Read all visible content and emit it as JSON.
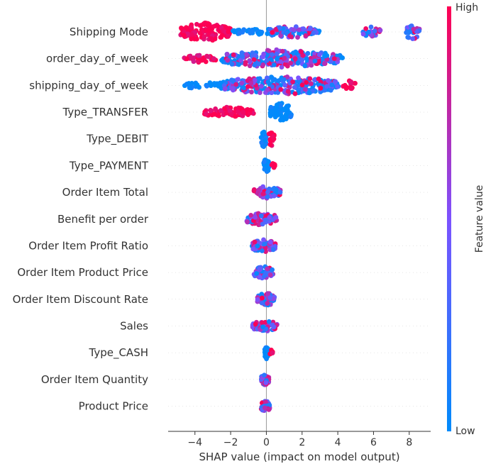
{
  "chart_data": {
    "type": "scatter",
    "subtype": "shap-beeswarm",
    "title": "",
    "xlabel": "SHAP value (impact on model output)",
    "ylabel": "",
    "xlim": [
      -5.5,
      9.2
    ],
    "x_ticks": [
      -4,
      -2,
      0,
      2,
      4,
      6,
      8
    ],
    "x_tick_labels": [
      "−4",
      "−2",
      "0",
      "2",
      "4",
      "6",
      "8"
    ],
    "colorbar": {
      "label": "Feature value",
      "high_label": "High",
      "low_label": "Low",
      "high_color": "#ff0052",
      "low_color": "#008bfb"
    },
    "features": [
      {
        "name": "Shipping Mode",
        "clusters": [
          {
            "min": -4.8,
            "max": -2.0,
            "value": 1.0,
            "count": 140,
            "spread": 1.0
          },
          {
            "min": -2.0,
            "max": 3.0,
            "value": 0.0,
            "count": 70,
            "spread": 0.35
          },
          {
            "min": 0.2,
            "max": 2.8,
            "value": 0.6,
            "count": 60,
            "spread": 0.65
          },
          {
            "min": 5.4,
            "max": 6.4,
            "value": 0.4,
            "count": 22,
            "spread": 0.55
          },
          {
            "min": 7.8,
            "max": 8.6,
            "value": 0.35,
            "count": 28,
            "spread": 0.85
          }
        ]
      },
      {
        "name": "order_day_of_week",
        "clusters": [
          {
            "min": -4.7,
            "max": -2.8,
            "value": 0.95,
            "count": 30,
            "spread": 0.4
          },
          {
            "min": -2.6,
            "max": 4.3,
            "value": 0.0,
            "count": 110,
            "spread": 0.85
          },
          {
            "min": -2.4,
            "max": 4.0,
            "value": 0.75,
            "count": 160,
            "spread": 1.0
          }
        ]
      },
      {
        "name": "shipping_day_of_week",
        "clusters": [
          {
            "min": -4.6,
            "max": -2.5,
            "value": 0.0,
            "count": 30,
            "spread": 0.4
          },
          {
            "min": -2.6,
            "max": 4.2,
            "value": 0.0,
            "count": 110,
            "spread": 0.85
          },
          {
            "min": -2.4,
            "max": 4.0,
            "value": 0.75,
            "count": 160,
            "spread": 1.0
          },
          {
            "min": 4.3,
            "max": 5.0,
            "value": 1.0,
            "count": 14,
            "spread": 0.5
          }
        ]
      },
      {
        "name": "Type_TRANSFER",
        "clusters": [
          {
            "min": -3.5,
            "max": -0.7,
            "value": 1.0,
            "count": 80,
            "spread": 0.55
          },
          {
            "min": 0.2,
            "max": 1.4,
            "value": 0.0,
            "count": 70,
            "spread": 1.0
          }
        ]
      },
      {
        "name": "Type_DEBIT",
        "clusters": [
          {
            "min": -0.3,
            "max": 0.0,
            "value": 0.0,
            "count": 40,
            "spread": 0.9
          },
          {
            "min": 0.1,
            "max": 0.45,
            "value": 1.0,
            "count": 22,
            "spread": 0.8
          }
        ]
      },
      {
        "name": "Type_PAYMENT",
        "clusters": [
          {
            "min": -0.15,
            "max": 0.15,
            "value": 0.0,
            "count": 40,
            "spread": 0.8
          },
          {
            "min": 0.15,
            "max": 0.5,
            "value": 1.0,
            "count": 8,
            "spread": 0.3
          }
        ]
      },
      {
        "name": "Order Item Total",
        "clusters": [
          {
            "min": -0.7,
            "max": 0.8,
            "value": 0.5,
            "count": 60,
            "spread": 0.7
          }
        ]
      },
      {
        "name": "Benefit per order",
        "clusters": [
          {
            "min": -1.1,
            "max": 0.6,
            "value": 0.5,
            "count": 60,
            "spread": 0.7
          }
        ]
      },
      {
        "name": "Order Item Profit Ratio",
        "clusters": [
          {
            "min": -0.8,
            "max": 0.5,
            "value": 0.5,
            "count": 60,
            "spread": 0.7
          }
        ]
      },
      {
        "name": "Order Item Product Price",
        "clusters": [
          {
            "min": -0.7,
            "max": 0.4,
            "value": 0.5,
            "count": 55,
            "spread": 0.7
          }
        ]
      },
      {
        "name": "Order Item Discount Rate",
        "clusters": [
          {
            "min": -0.5,
            "max": 0.5,
            "value": 0.5,
            "count": 55,
            "spread": 0.7
          }
        ]
      },
      {
        "name": "Sales",
        "clusters": [
          {
            "min": -0.8,
            "max": 0.6,
            "value": 0.5,
            "count": 55,
            "spread": 0.6
          }
        ]
      },
      {
        "name": "Type_CASH",
        "clusters": [
          {
            "min": -0.1,
            "max": 0.1,
            "value": 0.0,
            "count": 40,
            "spread": 0.7
          },
          {
            "min": 0.15,
            "max": 0.4,
            "value": 1.0,
            "count": 6,
            "spread": 0.3
          }
        ]
      },
      {
        "name": "Order Item Quantity",
        "clusters": [
          {
            "min": -0.3,
            "max": 0.15,
            "value": 0.5,
            "count": 40,
            "spread": 0.6
          }
        ]
      },
      {
        "name": "Product Price",
        "clusters": [
          {
            "min": -0.3,
            "max": 0.2,
            "value": 0.5,
            "count": 40,
            "spread": 0.6
          }
        ]
      }
    ]
  }
}
